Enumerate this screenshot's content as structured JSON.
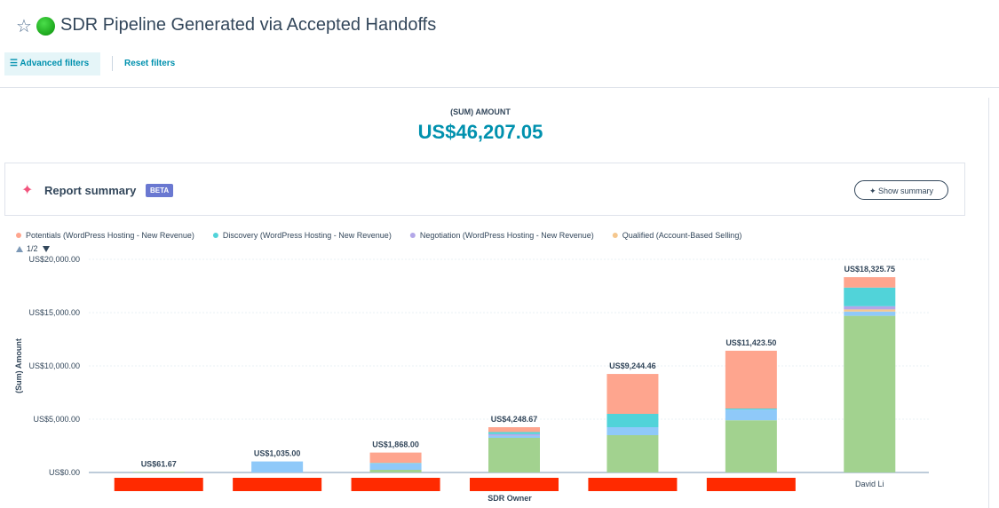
{
  "header": {
    "title": "SDR Pipeline Generated via Accepted Handoffs",
    "advanced_filters": "Advanced filters",
    "reset_filters": "Reset filters"
  },
  "kpi": {
    "label": "(SUM) AMOUNT",
    "value": "US$46,207.05"
  },
  "summary": {
    "title": "Report summary",
    "badge": "BETA",
    "button": "Show summary"
  },
  "chart_data": {
    "type": "stacked-bar",
    "x_label": "SDR Owner",
    "y_label": "(Sum) Amount",
    "legend_page": "1/2",
    "categories": [
      null,
      null,
      null,
      null,
      null,
      null,
      "David Li"
    ],
    "series": [
      {
        "name": "Potentials (WordPress Hosting - New Revenue)",
        "color": "#fea58e",
        "values": [
          0,
          0,
          968,
          448.67,
          3744.46,
          5423.5,
          975.75
        ]
      },
      {
        "name": "Discovery (WordPress Hosting - New Revenue)",
        "color": "#51d3d9",
        "values": [
          0,
          0,
          50,
          200,
          1250,
          100,
          1750
        ]
      },
      {
        "name": "Negotiation (WordPress Hosting - New Revenue)",
        "color": "#b3a7e8",
        "values": [
          0,
          0,
          0,
          150,
          0,
          0,
          300
        ]
      },
      {
        "name": "Qualified (Account-Based Selling)",
        "color": "#f5c78e",
        "values": [
          0,
          0,
          0,
          0,
          0,
          0,
          200
        ]
      },
      {
        "color": "#8fc9f9",
        "values": [
          0,
          1035,
          600,
          200,
          750,
          1000,
          400
        ]
      },
      {
        "color": "#a2d28f",
        "values": [
          61.67,
          0,
          250,
          3250,
          3500,
          4900,
          14700
        ]
      }
    ],
    "totals": [
      61.67,
      1035,
      1868,
      4248.67,
      9244.46,
      11423.5,
      18325.75
    ],
    "total_labels": [
      "US$61.67",
      "US$1,035.00",
      "US$1,868.00",
      "US$4,248.67",
      "US$9,244.46",
      "US$11,423.50",
      "US$18,325.75"
    ],
    "ylim": [
      0,
      20000
    ],
    "yticks": [
      {
        "value": 0,
        "label": "US$0.00"
      },
      {
        "value": 5000,
        "label": "US$5,000.00"
      },
      {
        "value": 10000,
        "label": "US$10,000.00"
      },
      {
        "value": 15000,
        "label": "US$15,000.00"
      },
      {
        "value": 20000,
        "label": "US$20,000.00"
      }
    ],
    "grid": true,
    "redaction_color": "#ff2a00"
  }
}
